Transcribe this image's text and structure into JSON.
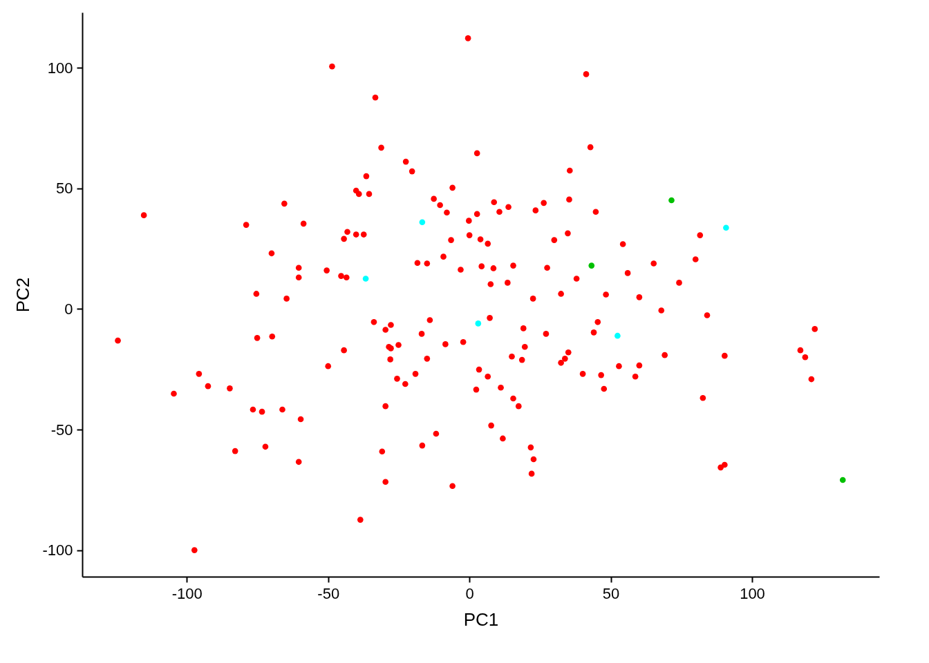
{
  "chart_data": {
    "type": "scatter",
    "xlabel": "PC1",
    "ylabel": "PC2",
    "xlim": [
      -137,
      145
    ],
    "ylim": [
      -111,
      123
    ],
    "xticks": [
      -100,
      -50,
      0,
      50,
      100
    ],
    "yticks": [
      -100,
      -50,
      0,
      50,
      100
    ],
    "grid": false,
    "legend": false,
    "marker": "circle",
    "series": [
      {
        "color": "#ff0000",
        "x": [
          -0.5,
          -48.6,
          41.3,
          -33.3,
          -31.2,
          42.8,
          2.7,
          -22.5,
          -20.3,
          35.5,
          -36.5,
          -6.0,
          -40.1,
          -39.1,
          -35.5,
          -115.2,
          -65.5,
          -12.6,
          -10.4,
          8.7,
          26.3,
          35.3,
          13.8,
          -8.0,
          2.7,
          10.6,
          23.4,
          44.7,
          -79.0,
          -58.7,
          -43.2,
          -44.4,
          -40.1,
          -37.4,
          -0.2,
          0.0,
          3.9,
          6.5,
          -6.5,
          34.8,
          30.0,
          81.6,
          -70.0,
          -9.2,
          54.3,
          65.2,
          80.0,
          -60.4,
          -18.4,
          -15.0,
          -3.1,
          4.3,
          8.5,
          15.5,
          27.5,
          -50.5,
          -60.4,
          -45.4,
          -43.5,
          37.9,
          56.0,
          74.2,
          7.5,
          13.5,
          -75.4,
          -64.7,
          32.4,
          48.3,
          22.5,
          60.1,
          67.9,
          84.1,
          -33.8,
          -14.0,
          -27.8,
          7.2,
          45.4,
          -124.4,
          -75.1,
          -69.8,
          -29.7,
          -16.9,
          19.1,
          27.1,
          44.0,
          122.2,
          -28.5,
          -27.8,
          -25.1,
          -8.5,
          -2.2,
          19.6,
          -44.4,
          35.0,
          15.0,
          69.1,
          90.3,
          117.1,
          118.8,
          -28.0,
          -15.0,
          18.6,
          33.8,
          32.4,
          -50.0,
          52.9,
          60.1,
          3.4,
          40.1,
          46.6,
          58.7,
          -95.7,
          -19.1,
          6.5,
          -25.6,
          121.0,
          -92.5,
          -22.7,
          11.1,
          47.6,
          2.4,
          -84.8,
          -104.6,
          15.5,
          82.6,
          -29.7,
          17.4,
          -76.6,
          -73.4,
          -66.2,
          -59.7,
          7.7,
          -11.8,
          11.8,
          -72.2,
          -82.9,
          -30.9,
          -16.7,
          21.7,
          22.7,
          -60.4,
          22.0,
          88.9,
          90.3,
          -29.7,
          -6.0,
          -38.6,
          -97.3
        ],
        "values": [
          112.3,
          100.6,
          97.4,
          87.7,
          66.9,
          67.1,
          64.6,
          61.1,
          57.1,
          57.4,
          55.1,
          50.3,
          49.1,
          47.7,
          47.7,
          38.9,
          43.7,
          45.7,
          43.1,
          44.3,
          44.0,
          45.4,
          42.3,
          40.0,
          39.4,
          40.3,
          40.9,
          40.3,
          34.9,
          35.4,
          32.0,
          29.1,
          30.9,
          30.9,
          36.6,
          30.6,
          28.9,
          27.1,
          28.6,
          31.4,
          28.6,
          30.6,
          23.1,
          21.7,
          26.9,
          18.9,
          20.6,
          17.1,
          19.1,
          18.9,
          16.3,
          17.7,
          16.9,
          18.0,
          17.1,
          16.0,
          13.1,
          13.7,
          13.1,
          12.6,
          14.9,
          10.9,
          10.3,
          10.9,
          6.3,
          4.3,
          6.3,
          6.0,
          4.3,
          4.9,
          -0.6,
          -2.6,
          -5.4,
          -4.6,
          -6.6,
          -3.7,
          -5.4,
          -13.1,
          -12.0,
          -11.4,
          -8.6,
          -10.3,
          -8.0,
          -10.3,
          -9.7,
          -8.3,
          -15.7,
          -16.3,
          -14.9,
          -14.6,
          -13.7,
          -15.7,
          -17.1,
          -18.0,
          -19.7,
          -19.1,
          -19.4,
          -17.1,
          -20.0,
          -20.9,
          -20.6,
          -21.1,
          -20.6,
          -22.3,
          -23.7,
          -23.7,
          -23.4,
          -25.1,
          -26.9,
          -27.4,
          -28.0,
          -26.9,
          -26.9,
          -28.0,
          -28.9,
          -29.1,
          -32.0,
          -31.1,
          -32.6,
          -33.1,
          -33.4,
          -32.9,
          -35.1,
          -37.1,
          -36.9,
          -40.3,
          -40.3,
          -41.7,
          -42.6,
          -41.7,
          -45.7,
          -48.3,
          -51.7,
          -53.7,
          -57.1,
          -58.9,
          -59.1,
          -56.6,
          -57.4,
          -62.3,
          -63.4,
          -68.3,
          -65.7,
          -64.6,
          -71.7,
          -73.4,
          -87.4,
          -100.0
        ]
      },
      {
        "color": "#00c000",
        "x": [
          71.5,
          43.2,
          132.1
        ],
        "values": [
          45.1,
          18.0,
          -70.9
        ]
      },
      {
        "color": "#00ffff",
        "x": [
          -16.7,
          -36.7,
          90.8,
          3.1,
          52.4
        ],
        "values": [
          36.0,
          12.6,
          33.7,
          -6.0,
          -11.1
        ]
      }
    ]
  }
}
